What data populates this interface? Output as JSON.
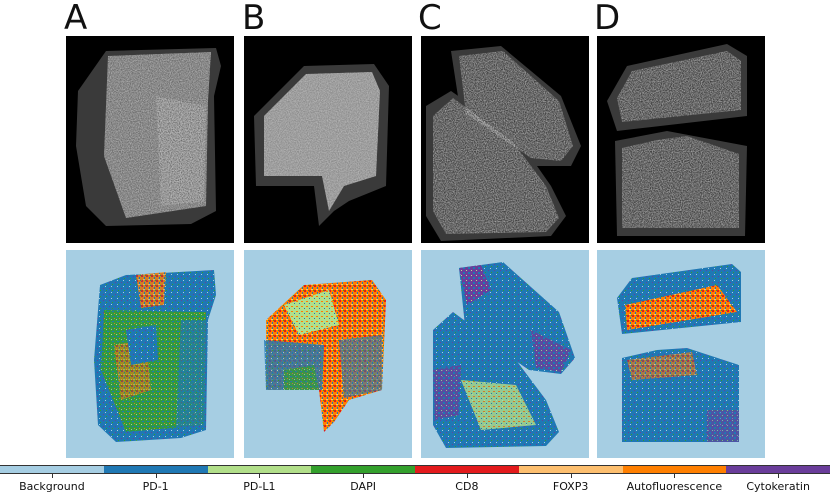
{
  "panels": [
    {
      "letter": "A"
    },
    {
      "letter": "B"
    },
    {
      "letter": "C"
    },
    {
      "letter": "D"
    }
  ],
  "legend": {
    "items": [
      {
        "label": "Background",
        "color": "#a6cee3"
      },
      {
        "label": "PD-1",
        "color": "#1f78b4"
      },
      {
        "label": "PD-L1",
        "color": "#b2df8a"
      },
      {
        "label": "DAPI",
        "color": "#33a02c"
      },
      {
        "label": "CD8",
        "color": "#e31a1c"
      },
      {
        "label": "FOXP3",
        "color": "#fdbf6f"
      },
      {
        "label": "Autofluorescence",
        "color": "#ff7f00"
      },
      {
        "label": "Cytokeratin",
        "color": "#6a3d9a"
      }
    ]
  }
}
